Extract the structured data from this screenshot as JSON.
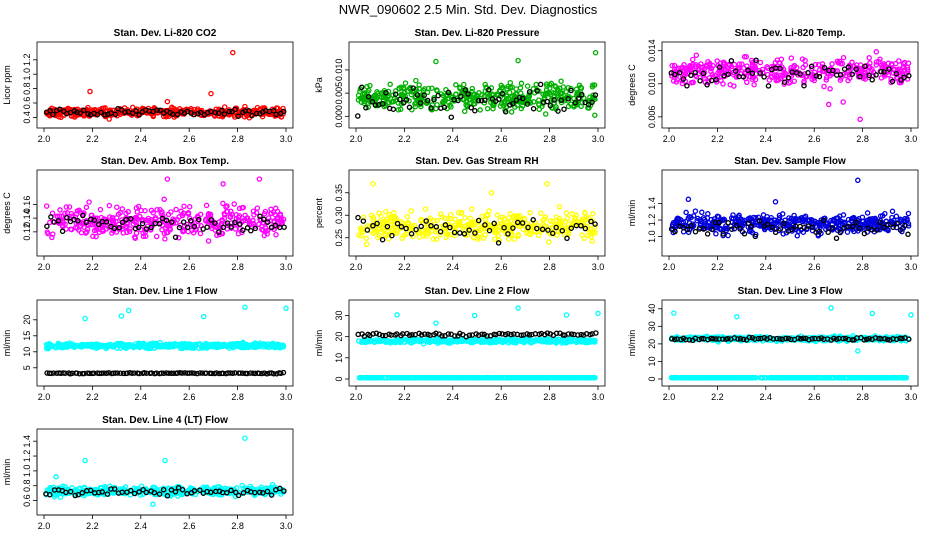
{
  "figure": {
    "title": "NWR_090602  2.5 Min. Std. Dev. Diagnostics"
  },
  "chart_data": [
    {
      "type": "scatter",
      "title": "Stan. Dev. Li-820 CO2",
      "xlabel": "",
      "ylabel": "Licor ppm",
      "xlim": [
        2.0,
        3.0
      ],
      "ylim": [
        0.35,
        1.35
      ],
      "xticks": [
        2.0,
        2.2,
        2.4,
        2.6,
        2.8,
        3.0
      ],
      "xtick_labels": [
        "2.0",
        "2.2",
        "2.4",
        "2.6",
        "2.8",
        "3.0"
      ],
      "yticks": [
        0.4,
        0.6,
        0.8,
        1.0,
        1.2
      ],
      "ytick_labels": [
        "0.4",
        "0.6",
        "0.8",
        "1.0",
        "1.2"
      ],
      "series": [
        {
          "name": "main",
          "color": "#ff0000",
          "base": 0.47,
          "spread": 0.05,
          "n": 420,
          "outliers": [
            [
              2.19,
              0.76
            ],
            [
              2.78,
              1.3
            ],
            [
              2.69,
              0.73
            ],
            [
              2.83,
              0.55
            ],
            [
              2.51,
              0.62
            ]
          ]
        },
        {
          "name": "black",
          "color": "#000000",
          "base": 0.47,
          "spread": 0.04,
          "n": 70,
          "outliers": []
        }
      ]
    },
    {
      "type": "scatter",
      "title": "Stan. Dev. Li-820 Pressure",
      "xlabel": "",
      "ylabel": "kPa",
      "xlim": [
        2.0,
        3.0
      ],
      "ylim": [
        -0.001,
        0.0145
      ],
      "xticks": [
        2.0,
        2.2,
        2.4,
        2.6,
        2.8,
        3.0
      ],
      "xtick_labels": [
        "2.0",
        "2.2",
        "2.4",
        "2.6",
        "2.8",
        "3.0"
      ],
      "yticks": [
        0.0,
        0.005,
        0.01
      ],
      "ytick_labels": [
        "0.000",
        "0.005",
        "0.010"
      ],
      "series": [
        {
          "name": "main",
          "color": "#00b000",
          "base": 0.004,
          "spread": 0.0025,
          "n": 420,
          "outliers": [
            [
              2.33,
              0.0118
            ],
            [
              2.67,
              0.012
            ],
            [
              2.99,
              0.0137
            ]
          ]
        },
        {
          "name": "black",
          "color": "#000000",
          "base": 0.0035,
          "spread": 0.0022,
          "n": 70,
          "outliers": []
        }
      ]
    },
    {
      "type": "scatter",
      "title": "Stan. Dev. Li-820 Temp.",
      "xlabel": "",
      "ylabel": "degrees C",
      "xlim": [
        2.0,
        3.0
      ],
      "ylim": [
        0.0055,
        0.0142
      ],
      "xticks": [
        2.0,
        2.2,
        2.4,
        2.6,
        2.8,
        3.0
      ],
      "xtick_labels": [
        "2.0",
        "2.2",
        "2.4",
        "2.6",
        "2.8",
        "3.0"
      ],
      "yticks": [
        0.006,
        0.01,
        0.014
      ],
      "ytick_labels": [
        "0.006",
        "0.010",
        "0.014"
      ],
      "series": [
        {
          "name": "main",
          "color": "#ff00ff",
          "base": 0.0115,
          "spread": 0.0012,
          "n": 380,
          "outliers": [
            [
              2.79,
              0.0057
            ],
            [
              2.72,
              0.0078
            ],
            [
              2.66,
              0.0075
            ]
          ]
        },
        {
          "name": "black",
          "color": "#000000",
          "base": 0.0112,
          "spread": 0.0011,
          "n": 60,
          "outliers": []
        }
      ]
    },
    {
      "type": "scatter",
      "title": "Stan. Dev. Amb. Box Temp.",
      "xlabel": "",
      "ylabel": "degrees C",
      "xlim": [
        2.0,
        3.0
      ],
      "ylim": [
        0.095,
        0.2
      ],
      "xticks": [
        2.0,
        2.2,
        2.4,
        2.6,
        2.8,
        3.0
      ],
      "xtick_labels": [
        "2.0",
        "2.2",
        "2.4",
        "2.6",
        "2.8",
        "3.0"
      ],
      "yticks": [
        0.12,
        0.14,
        0.16
      ],
      "ytick_labels": [
        "0.12",
        "0.14",
        "0.16"
      ],
      "series": [
        {
          "name": "main",
          "color": "#ff00ff",
          "base": 0.135,
          "spread": 0.018,
          "n": 380,
          "outliers": [
            [
              2.51,
              0.197
            ],
            [
              2.89,
              0.197
            ],
            [
              2.74,
              0.19
            ]
          ]
        },
        {
          "name": "black",
          "color": "#000000",
          "base": 0.132,
          "spread": 0.012,
          "n": 60,
          "outliers": []
        }
      ]
    },
    {
      "type": "scatter",
      "title": "Stan. Dev. Gas Stream RH",
      "xlabel": "",
      "ylabel": "percent",
      "xlim": [
        2.0,
        3.0
      ],
      "ylim": [
        0.225,
        0.385
      ],
      "xticks": [
        2.0,
        2.2,
        2.4,
        2.6,
        2.8,
        3.0
      ],
      "xtick_labels": [
        "2.0",
        "2.2",
        "2.4",
        "2.6",
        "2.8",
        "3.0"
      ],
      "yticks": [
        0.25,
        0.3,
        0.35
      ],
      "ytick_labels": [
        "0.25",
        "0.30",
        "0.35"
      ],
      "series": [
        {
          "name": "main",
          "color": "#ffff00",
          "base": 0.275,
          "spread": 0.025,
          "n": 380,
          "outliers": [
            [
              2.07,
              0.37
            ],
            [
              2.79,
              0.37
            ],
            [
              2.56,
              0.35
            ]
          ]
        },
        {
          "name": "black",
          "color": "#000000",
          "base": 0.27,
          "spread": 0.02,
          "n": 50,
          "outliers": []
        }
      ]
    },
    {
      "type": "scatter",
      "title": "Stan. Dev. Sample Flow",
      "xlabel": "",
      "ylabel": "ml/min",
      "xlim": [
        2.0,
        3.0
      ],
      "ylim": [
        0.85,
        1.72
      ],
      "xticks": [
        2.0,
        2.2,
        2.4,
        2.6,
        2.8,
        3.0
      ],
      "xtick_labels": [
        "2.0",
        "2.2",
        "2.4",
        "2.6",
        "2.8",
        "3.0"
      ],
      "yticks": [
        1.0,
        1.2,
        1.4
      ],
      "ytick_labels": [
        "1.0",
        "1.2",
        "1.4"
      ],
      "series": [
        {
          "name": "main",
          "color": "#0000dd",
          "base": 1.16,
          "spread": 0.1,
          "n": 420,
          "outliers": [
            [
              2.78,
              1.68
            ],
            [
              2.08,
              1.45
            ],
            [
              2.44,
              1.42
            ]
          ]
        },
        {
          "name": "black",
          "color": "#000000",
          "base": 1.1,
          "spread": 0.08,
          "n": 60,
          "outliers": []
        }
      ]
    },
    {
      "type": "scatter",
      "title": "Stan. Dev. Line 1 Flow",
      "xlabel": "",
      "ylabel": "ml/min",
      "xlim": [
        2.0,
        3.0
      ],
      "ylim": [
        1.5,
        24.0
      ],
      "xticks": [
        2.0,
        2.2,
        2.4,
        2.6,
        2.8,
        3.0
      ],
      "xtick_labels": [
        "2.0",
        "2.2",
        "2.4",
        "2.6",
        "2.8",
        "3.0"
      ],
      "yticks": [
        5,
        10,
        15,
        20
      ],
      "ytick_labels": [
        "5",
        "10",
        "15",
        "20"
      ],
      "series": [
        {
          "name": "main",
          "color": "#00ffff",
          "base": 11.9,
          "spread": 0.6,
          "n": 480,
          "outliers": [
            [
              2.17,
              20.4
            ],
            [
              2.32,
              21.2
            ],
            [
              2.35,
              22.9
            ],
            [
              2.66,
              21.0
            ],
            [
              2.83,
              23.9
            ],
            [
              3.0,
              23.6
            ]
          ]
        },
        {
          "name": "black",
          "color": "#000000",
          "base": 3.3,
          "spread": 0.12,
          "n": 100,
          "outliers": []
        }
      ]
    },
    {
      "type": "scatter",
      "title": "Stan. Dev. Line 2 Flow",
      "xlabel": "",
      "ylabel": "ml/min",
      "xlim": [
        2.0,
        3.0
      ],
      "ylim": [
        0.0,
        34.0
      ],
      "xticks": [
        2.0,
        2.2,
        2.4,
        2.6,
        2.8,
        3.0
      ],
      "xtick_labels": [
        "2.0",
        "2.2",
        "2.4",
        "2.6",
        "2.8",
        "3.0"
      ],
      "yticks": [
        0,
        10,
        20,
        30
      ],
      "ytick_labels": [
        "0",
        "10",
        "20",
        "30"
      ],
      "series": [
        {
          "name": "main",
          "color": "#00ffff",
          "base": 18.0,
          "spread": 0.8,
          "n": 420,
          "outliers": [
            [
              2.17,
              30.3
            ],
            [
              2.33,
              26.4
            ],
            [
              2.49,
              30.0
            ],
            [
              2.67,
              33.5
            ],
            [
              2.87,
              30.2
            ],
            [
              3.0,
              31.0
            ]
          ]
        },
        {
          "name": "low",
          "color": "#00ffff",
          "base": 0.6,
          "spread": 0.05,
          "n": 420,
          "outliers": []
        },
        {
          "name": "black",
          "color": "#000000",
          "base": 21.0,
          "spread": 0.6,
          "n": 80,
          "outliers": []
        }
      ]
    },
    {
      "type": "scatter",
      "title": "Stan. Dev. Line 3 Flow",
      "xlabel": "",
      "ylabel": "ml/min",
      "xlim": [
        2.0,
        3.0
      ],
      "ylim": [
        0.0,
        41.0
      ],
      "xticks": [
        2.0,
        2.2,
        2.4,
        2.6,
        2.8,
        3.0
      ],
      "xtick_labels": [
        "2.0",
        "2.2",
        "2.4",
        "2.6",
        "2.8",
        "3.0"
      ],
      "yticks": [
        0,
        10,
        20,
        30,
        40
      ],
      "ytick_labels": [
        "0",
        "10",
        "20",
        "30",
        "40"
      ],
      "series": [
        {
          "name": "main",
          "color": "#00ffff",
          "base": 23.0,
          "spread": 1.0,
          "n": 420,
          "outliers": [
            [
              2.02,
              37.5
            ],
            [
              2.28,
              35.5
            ],
            [
              2.67,
              40.5
            ],
            [
              2.84,
              37.3
            ],
            [
              3.0,
              36.5
            ],
            [
              2.78,
              16.0
            ]
          ]
        },
        {
          "name": "low",
          "color": "#00ffff",
          "base": 0.7,
          "spread": 0.05,
          "n": 420,
          "outliers": []
        },
        {
          "name": "black",
          "color": "#000000",
          "base": 22.9,
          "spread": 0.7,
          "n": 80,
          "outliers": []
        }
      ]
    },
    {
      "type": "scatter",
      "title": "Stan. Dev. Line 4 (LT) Flow",
      "xlabel": "",
      "ylabel": "ml/min",
      "xlim": [
        2.0,
        3.0
      ],
      "ylim": [
        0.5,
        1.47
      ],
      "xticks": [
        2.0,
        2.2,
        2.4,
        2.6,
        2.8,
        3.0
      ],
      "xtick_labels": [
        "2.0",
        "2.2",
        "2.4",
        "2.6",
        "2.8",
        "3.0"
      ],
      "yticks": [
        0.6,
        0.8,
        1.0,
        1.2,
        1.4
      ],
      "ytick_labels": [
        "0.6",
        "0.8",
        "1.0",
        "1.2",
        "1.4"
      ],
      "series": [
        {
          "name": "main",
          "color": "#00ffff",
          "base": 0.73,
          "spread": 0.05,
          "n": 420,
          "outliers": [
            [
              2.17,
              1.14
            ],
            [
              2.5,
              1.14
            ],
            [
              2.83,
              1.44
            ],
            [
              2.05,
              0.92
            ],
            [
              2.45,
              0.55
            ]
          ]
        },
        {
          "name": "black",
          "color": "#000000",
          "base": 0.72,
          "spread": 0.04,
          "n": 60,
          "outliers": []
        }
      ]
    }
  ]
}
